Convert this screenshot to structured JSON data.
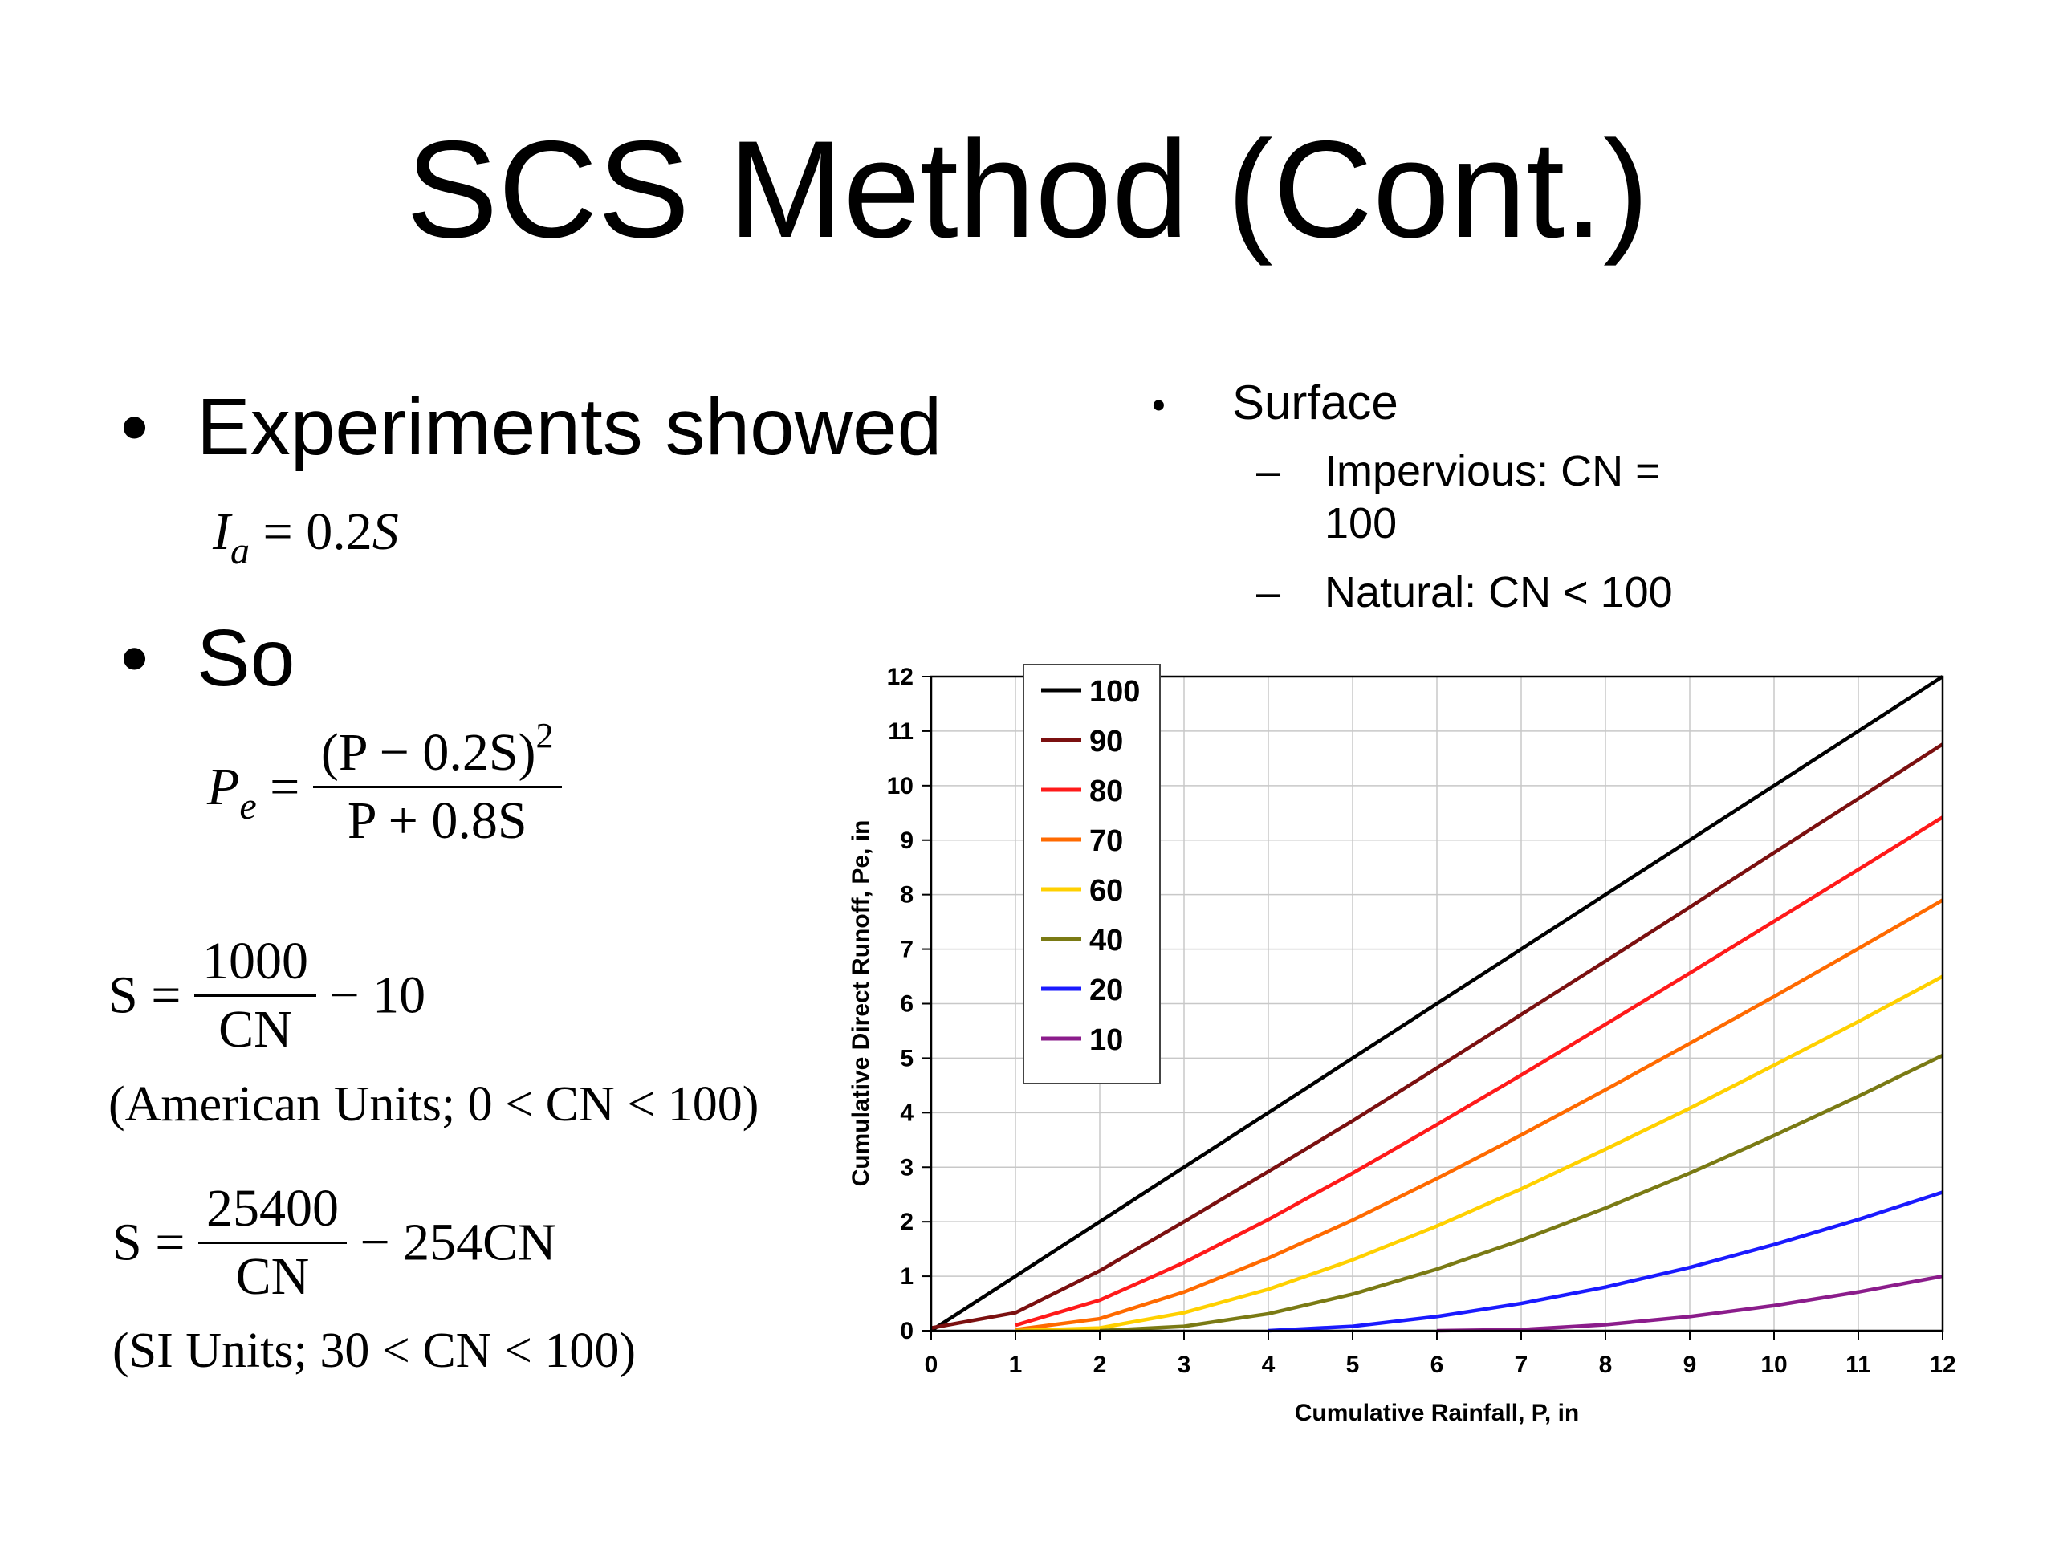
{
  "title": "SCS Method (Cont.)",
  "left": {
    "bullet1": "Experiments showed",
    "bullet2": "So",
    "eq_ia": {
      "lhs_var": "I",
      "lhs_sub": "a",
      "rhs": "= 0.2",
      "rhs_var": "S"
    },
    "eq_pe": {
      "lhs_var": "P",
      "lhs_sub": "e",
      "eq": "=",
      "numerator": "(P − 0.2S)",
      "numerator_power": "2",
      "denominator": "P + 0.8S"
    },
    "eq_s_us": {
      "lhs": "S =",
      "numerator": "1000",
      "denominator": "CN",
      "tail": "− 10",
      "note": "(American Units; 0 < CN < 100)"
    },
    "eq_s_si": {
      "lhs": "S =",
      "numerator": "25400",
      "denominator": "CN",
      "tail": "− 254CN",
      "note": "(SI Units; 30 < CN < 100)"
    }
  },
  "right": {
    "bullet": "Surface",
    "items": [
      {
        "dash": "–",
        "lines": [
          "Impervious:  CN =",
          "100"
        ]
      },
      {
        "dash": "–",
        "lines": [
          "Natural:  CN < 100"
        ]
      }
    ]
  },
  "chart_data": {
    "type": "line",
    "xlabel": "Cumulative Rainfall, P, in",
    "ylabel": "Cumulative Direct Runoff, Pe, in",
    "xlim": [
      0,
      12
    ],
    "ylim": [
      0,
      12
    ],
    "xticks": [
      "0",
      "1",
      "2",
      "3",
      "4",
      "5",
      "6",
      "7",
      "8",
      "9",
      "10",
      "11",
      "12"
    ],
    "yticks": [
      "0",
      "1",
      "2",
      "3",
      "4",
      "5",
      "6",
      "7",
      "8",
      "9",
      "10",
      "11",
      "12"
    ],
    "grid": true,
    "legend_position": "top-left",
    "series": [
      {
        "name": "100",
        "color": "#000000",
        "points": [
          [
            0,
            0
          ],
          [
            1,
            1
          ],
          [
            2,
            2
          ],
          [
            3,
            3
          ],
          [
            4,
            4
          ],
          [
            5,
            5
          ],
          [
            6,
            6
          ],
          [
            7,
            7
          ],
          [
            8,
            8
          ],
          [
            9,
            9
          ],
          [
            10,
            10
          ],
          [
            11,
            11
          ],
          [
            12,
            12
          ]
        ]
      },
      {
        "name": "90",
        "color": "#7b1010",
        "points": [
          [
            0,
            0.05
          ],
          [
            1,
            0.33
          ],
          [
            2,
            1.1
          ],
          [
            3,
            2.0
          ],
          [
            4,
            2.92
          ],
          [
            5,
            3.85
          ],
          [
            6,
            4.82
          ],
          [
            7,
            5.8
          ],
          [
            8,
            6.78
          ],
          [
            9,
            7.77
          ],
          [
            10,
            8.77
          ],
          [
            11,
            9.76
          ],
          [
            12,
            10.76
          ]
        ]
      },
      {
        "name": "80",
        "color": "#ff1a1a",
        "points": [
          [
            1,
            0.1
          ],
          [
            2,
            0.56
          ],
          [
            3,
            1.25
          ],
          [
            4,
            2.04
          ],
          [
            5,
            2.89
          ],
          [
            6,
            3.78
          ],
          [
            7,
            4.69
          ],
          [
            8,
            5.62
          ],
          [
            9,
            6.56
          ],
          [
            10,
            7.51
          ],
          [
            11,
            8.46
          ],
          [
            12,
            9.42
          ]
        ]
      },
      {
        "name": "70",
        "color": "#ff6a00",
        "points": [
          [
            1,
            0.02
          ],
          [
            2,
            0.22
          ],
          [
            3,
            0.71
          ],
          [
            4,
            1.33
          ],
          [
            5,
            2.03
          ],
          [
            6,
            2.79
          ],
          [
            7,
            3.59
          ],
          [
            8,
            4.42
          ],
          [
            9,
            5.27
          ],
          [
            10,
            6.13
          ],
          [
            11,
            7.01
          ],
          [
            12,
            7.9
          ]
        ]
      },
      {
        "name": "60",
        "color": "#ffd000",
        "points": [
          [
            1,
            0.0
          ],
          [
            2,
            0.05
          ],
          [
            3,
            0.33
          ],
          [
            4,
            0.76
          ],
          [
            5,
            1.3
          ],
          [
            6,
            1.92
          ],
          [
            7,
            2.6
          ],
          [
            8,
            3.33
          ],
          [
            9,
            4.08
          ],
          [
            10,
            4.87
          ],
          [
            11,
            5.67
          ],
          [
            12,
            6.5
          ]
        ]
      },
      {
        "name": "40",
        "color": "#7a7a14",
        "points": [
          [
            2,
            0.0
          ],
          [
            3,
            0.08
          ],
          [
            4,
            0.31
          ],
          [
            5,
            0.67
          ],
          [
            6,
            1.13
          ],
          [
            7,
            1.66
          ],
          [
            8,
            2.25
          ],
          [
            9,
            2.89
          ],
          [
            10,
            3.58
          ],
          [
            11,
            4.3
          ],
          [
            12,
            5.05
          ]
        ]
      },
      {
        "name": "20",
        "color": "#1a1aff",
        "points": [
          [
            4,
            0.0
          ],
          [
            5,
            0.08
          ],
          [
            6,
            0.26
          ],
          [
            7,
            0.5
          ],
          [
            8,
            0.8
          ],
          [
            9,
            1.16
          ],
          [
            10,
            1.58
          ],
          [
            11,
            2.04
          ],
          [
            12,
            2.54
          ]
        ]
      },
      {
        "name": "10",
        "color": "#8b1c8b",
        "points": [
          [
            6,
            0.0
          ],
          [
            7,
            0.02
          ],
          [
            8,
            0.11
          ],
          [
            9,
            0.26
          ],
          [
            10,
            0.46
          ],
          [
            11,
            0.71
          ],
          [
            12,
            1.0
          ]
        ]
      }
    ]
  }
}
